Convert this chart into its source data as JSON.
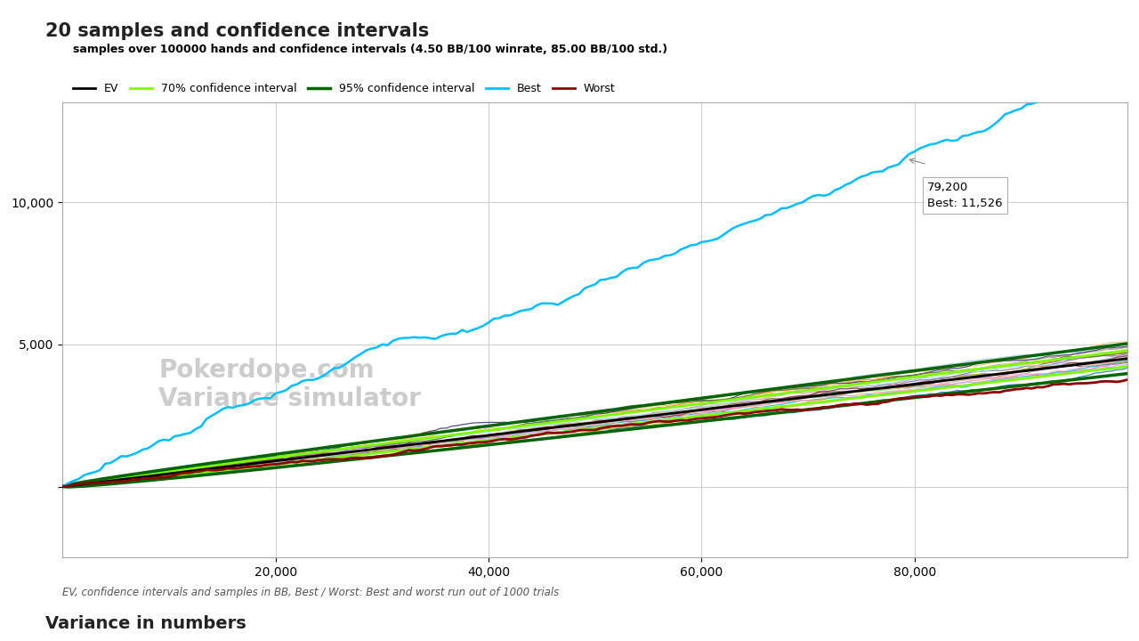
{
  "title_main": "20 samples and confidence intervals",
  "chart_title": "samples over 100000 hands and confidence intervals (4.50 BB/100 winrate, 85.00 BB/100 std.)",
  "legend_items": [
    "EV",
    "70% confidence interval",
    "95% confidence interval",
    "Best",
    "Worst"
  ],
  "legend_colors": [
    "#000000",
    "#90ee90",
    "#006400",
    "#00bfff",
    "#8b0000"
  ],
  "footer": "EV, confidence intervals and samples in BB, Best / Worst: Best and worst run out of 1000 trials",
  "section_below": "Variance in numbers",
  "n_hands": 100000,
  "winrate": 4.5,
  "std": 85.0,
  "n_samples": 20,
  "n_trials": 1000,
  "tooltip_x": 79200,
  "tooltip_y": 11526,
  "tooltip_line1": "79,200",
  "tooltip_line2": "Best: 11,526",
  "bg_color": "#ffffff",
  "plot_bg": "#ffffff",
  "grid_color": "#cccccc",
  "xticks": [
    20000,
    40000,
    60000,
    80000
  ],
  "ytick_values": [
    0,
    5000,
    10000
  ],
  "ytick_labels": [
    "",
    "5,000",
    "10,000"
  ],
  "ylim": [
    -2500,
    13500
  ],
  "xlim": [
    0,
    100000
  ],
  "watermark_line1": "Pokerdope.com",
  "watermark_line2": "Variance simulator"
}
